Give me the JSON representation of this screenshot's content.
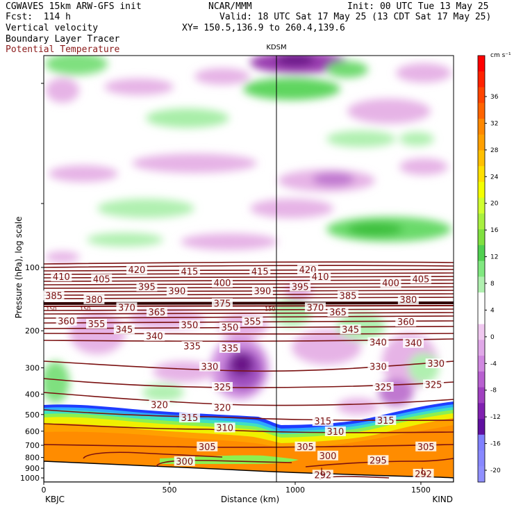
{
  "header": {
    "line1_left": "CGWAVES 15km ARW-GFS init",
    "line1_mid": "NCAR/MMM",
    "line1_right": "Init: 00 UTC Tue 13 May 25",
    "line2_left": "Fcst:  114 h",
    "line2_right": "Valid: 18 UTC Sat 17 May 25 (13 CDT Sat 17 May 25)",
    "line3_left": "Vertical velocity",
    "line3_right": "XY= 150.5,136.9 to 260.4,139.6",
    "line4_left": "Boundary Layer Tracer",
    "line5_left": "Potential Temperature"
  },
  "colors": {
    "theta_contour": "#7a1010",
    "title_red": "#8b1a1a",
    "terrain": "#ffffff"
  },
  "chart_data": {
    "type": "heatmap",
    "station_marker": {
      "label": "KDSM",
      "distance_km": 930
    },
    "xlabel": "Distance (km)",
    "ylabel": "Pressure (hPa), log scale",
    "xlim": [
      0,
      1630
    ],
    "x_ticks": [
      0,
      500,
      1000,
      1500
    ],
    "x_end_labels": {
      "left": "KBJC",
      "right": "KIND"
    },
    "y_ticks": [
      100,
      200,
      300,
      400,
      500,
      600,
      700,
      800,
      900,
      1000
    ],
    "colorbar": {
      "unit": "cm s⁻¹",
      "tick_labels": [
        36,
        32,
        28,
        24,
        20,
        16,
        12,
        8,
        4,
        0,
        -4,
        -8,
        -12,
        -16,
        -20
      ],
      "colors": [
        "#ff0000",
        "#ff2200",
        "#ff4400",
        "#ff6400",
        "#ff8800",
        "#ffa000",
        "#ffc000",
        "#ffe000",
        "#f4ff00",
        "#d0ff30",
        "#a8f040",
        "#80e040",
        "#50d050",
        "#80e880",
        "#b0f0b0",
        "#ffffff",
        "#ffffff",
        "#f0c8f0",
        "#e0a8e8",
        "#d088e0",
        "#b860d0",
        "#a040c0",
        "#8020b0",
        "#6010a0",
        "#8080ff",
        "#8888ff",
        "#9090ff"
      ]
    },
    "theta_contours": [
      {
        "value": 420,
        "labels_at_km": [
          370,
          1050
        ]
      },
      {
        "value": 415,
        "labels_at_km": [
          580,
          860
        ]
      },
      {
        "value": 410,
        "labels_at_km": [
          70,
          1100
        ]
      },
      {
        "value": 405,
        "labels_at_km": [
          230,
          1500
        ]
      },
      {
        "value": 400,
        "labels_at_km": [
          710,
          1380
        ]
      },
      {
        "value": 395,
        "labels_at_km": [
          410,
          1020
        ]
      },
      {
        "value": 390,
        "labels_at_km": [
          530,
          870
        ]
      },
      {
        "value": 385,
        "labels_at_km": [
          40,
          1210
        ]
      },
      {
        "value": 380,
        "labels_at_km": [
          200,
          1450
        ]
      },
      {
        "value": 375,
        "labels_at_km": [
          710
        ]
      },
      {
        "value": 370,
        "labels_at_km": [
          330,
          1080
        ]
      },
      {
        "value": 365,
        "labels_at_km": [
          450,
          1170
        ]
      },
      {
        "value": 360,
        "labels_at_km": [
          90,
          1440
        ]
      },
      {
        "value": 355,
        "labels_at_km": [
          210,
          830
        ]
      },
      {
        "value": 350,
        "labels_at_km": [
          580,
          740
        ]
      },
      {
        "value": 345,
        "labels_at_km": [
          320,
          1220
        ]
      },
      {
        "value": 340,
        "labels_at_km": [
          440,
          1330,
          1470
        ]
      },
      {
        "value": 335,
        "labels_at_km": [
          590,
          740
        ]
      },
      {
        "value": 330,
        "labels_at_km": [
          660,
          1330,
          1560
        ]
      },
      {
        "value": 325,
        "labels_at_km": [
          710,
          1350,
          1550
        ]
      },
      {
        "value": 320,
        "labels_at_km": [
          460,
          710
        ]
      },
      {
        "value": 315,
        "labels_at_km": [
          580,
          1110,
          1360
        ]
      },
      {
        "value": 310,
        "labels_at_km": [
          720,
          1160
        ]
      },
      {
        "value": 305,
        "labels_at_km": [
          650,
          1040,
          1520
        ]
      },
      {
        "value": 300,
        "labels_at_km": [
          560,
          1130
        ]
      },
      {
        "value": 295,
        "labels_at_km": [
          1330
        ]
      },
      {
        "value": 292,
        "labels_at_km": [
          1110,
          1510
        ]
      }
    ],
    "tracer_small_labels": [
      {
        "text": "150",
        "distance_km": 30
      },
      {
        "text": "150",
        "distance_km": 165
      },
      {
        "text": "150",
        "distance_km": 900
      }
    ],
    "low_markers": [
      {
        "text": "L",
        "distance_km": 1110
      },
      {
        "text": "L",
        "distance_km": 1510
      }
    ]
  }
}
